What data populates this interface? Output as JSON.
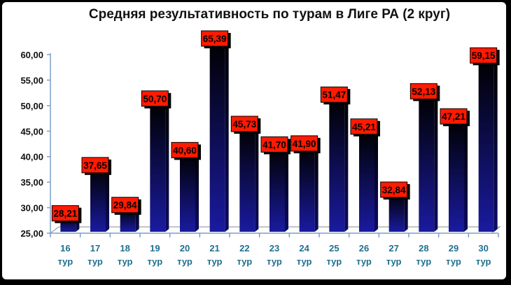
{
  "chart_data": {
    "type": "bar",
    "title": "Средняя результативность по турам в Лиге РА (2 круг)",
    "categories": [
      "16 тур",
      "17 тур",
      "18 тур",
      "19 тур",
      "20 тур",
      "21 тур",
      "22 тур",
      "23 тур",
      "24 тур",
      "25 тур",
      "26 тур",
      "27 тур",
      "28 тур",
      "29 тур",
      "30 тур"
    ],
    "values": [
      28.21,
      37.65,
      29.84,
      50.7,
      40.6,
      65.39,
      45.73,
      41.7,
      41.9,
      51.47,
      45.21,
      32.84,
      52.13,
      47.21,
      59.15
    ],
    "data_labels": [
      "28,21",
      "37,65",
      "29,84",
      "50,70",
      "40,60",
      "65,39",
      "45,73",
      "41,70",
      "41,90",
      "51,47",
      "45,21",
      "32,84",
      "52,13",
      "47,21",
      "59,15"
    ],
    "y_ticks": [
      "25,00",
      "30,00",
      "35,00",
      "40,00",
      "45,00",
      "50,00",
      "55,00",
      "60,00"
    ],
    "ylim": [
      25,
      60
    ],
    "xlabel": "",
    "ylabel": "",
    "colors": {
      "bar_top": "#000000",
      "bar_bottom": "#1a1aa0",
      "label_bg": "#ff1a00",
      "axis_text": "#1f6f8f"
    }
  }
}
